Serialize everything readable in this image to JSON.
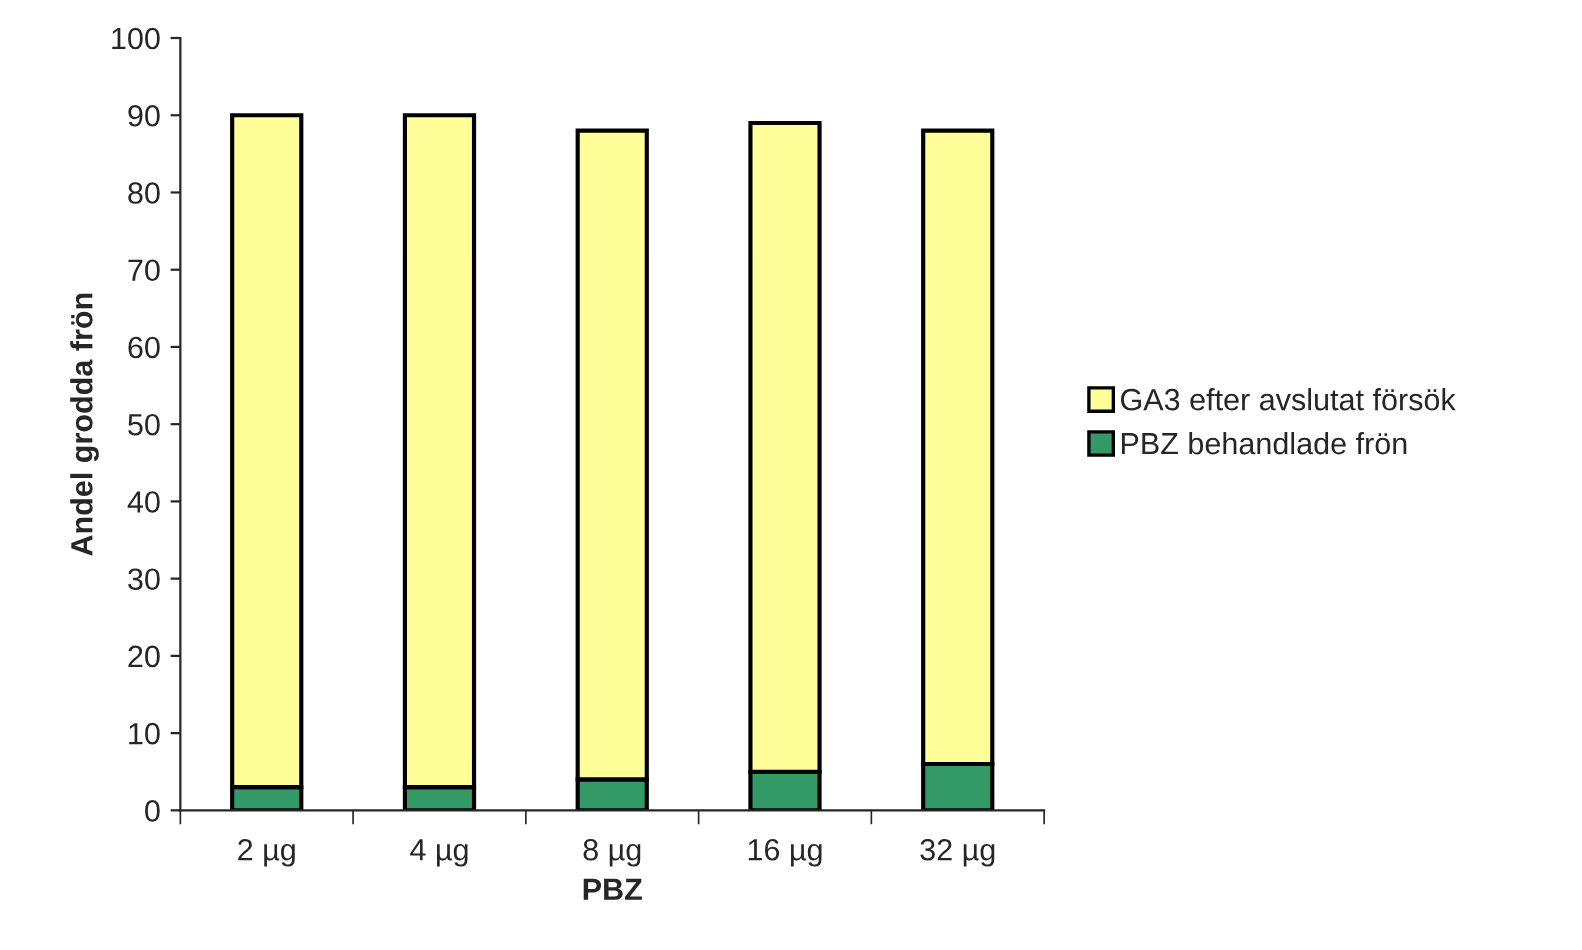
{
  "chart_data": {
    "type": "bar",
    "stacked": true,
    "xlabel": "PBZ",
    "ylabel": "Andel grodda frön",
    "categories": [
      "2 µg",
      "4 µg",
      "8 µg",
      "16 µg",
      "32 µg"
    ],
    "series": [
      {
        "name": "PBZ behandlade frön",
        "color": "#339966",
        "values": [
          3,
          3,
          4,
          5,
          6
        ]
      },
      {
        "name": "GA3 efter avslutat försök",
        "color": "#ffff99",
        "values": [
          87,
          87,
          84,
          84,
          82
        ]
      }
    ],
    "ylim": [
      0,
      100
    ],
    "yticks": [
      0,
      10,
      20,
      30,
      40,
      50,
      60,
      70,
      80,
      90,
      100
    ],
    "grid": false,
    "legend": "right"
  }
}
